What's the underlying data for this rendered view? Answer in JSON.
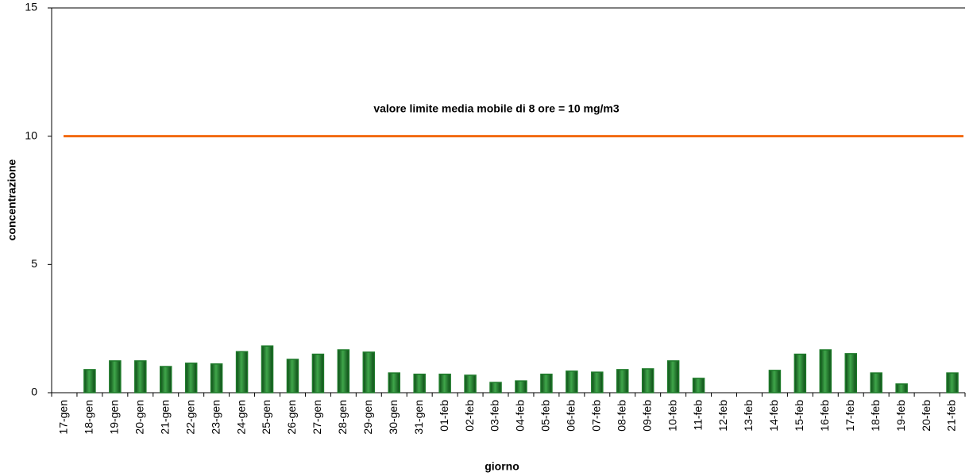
{
  "chart_data": {
    "type": "bar",
    "x_label": "giorno",
    "y_label": "concentrazione",
    "categories": [
      "17-gen",
      "18-gen",
      "19-gen",
      "20-gen",
      "21-gen",
      "22-gen",
      "23-gen",
      "24-gen",
      "25-gen",
      "26-gen",
      "27-gen",
      "28-gen",
      "29-gen",
      "30-gen",
      "31-gen",
      "01-feb",
      "02-feb",
      "03-feb",
      "04-feb",
      "05-feb",
      "06-feb",
      "07-feb",
      "08-feb",
      "09-feb",
      "10-feb",
      "11-feb",
      "12-feb",
      "13-feb",
      "14-feb",
      "15-feb",
      "16-feb",
      "17-feb",
      "18-feb",
      "19-feb",
      "20-feb",
      "21-feb"
    ],
    "values": [
      null,
      0.9,
      1.24,
      1.24,
      1.02,
      1.15,
      1.12,
      1.6,
      1.82,
      1.3,
      1.5,
      1.67,
      1.58,
      0.77,
      0.72,
      0.72,
      0.68,
      0.4,
      0.46,
      0.72,
      0.84,
      0.8,
      0.9,
      0.93,
      1.24,
      0.56,
      null,
      null,
      0.87,
      1.5,
      1.67,
      1.52,
      0.77,
      0.34,
      null,
      0.77
    ],
    "color": "#1e7a2a",
    "ylim": [
      0,
      15
    ],
    "yticks": [
      0,
      5,
      10,
      15
    ],
    "limit": {
      "value": 10,
      "label": "valore limite media mobile di 8 ore = 10 mg/m3",
      "color": "#f26a10"
    }
  }
}
